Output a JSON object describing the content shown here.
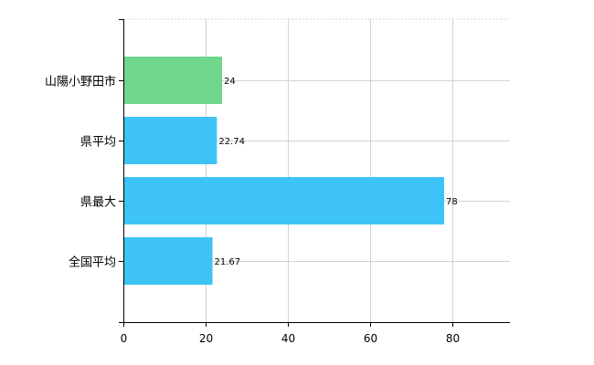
{
  "chart_data": {
    "type": "bar",
    "orientation": "horizontal",
    "categories": [
      "山陽小野田市",
      "県平均",
      "県最大",
      "全国平均"
    ],
    "values": [
      24,
      22.74,
      78,
      21.67
    ],
    "value_labels": [
      "24",
      "22.74",
      "78",
      "21.67"
    ],
    "bar_colors": [
      "#6fd68b",
      "#3dc3f5",
      "#3dc3f5",
      "#3dc3f5"
    ],
    "xlim": [
      0,
      94
    ],
    "xticks": [
      0,
      20,
      40,
      60,
      80
    ],
    "grid": true,
    "title": "",
    "xlabel": "",
    "ylabel": ""
  }
}
